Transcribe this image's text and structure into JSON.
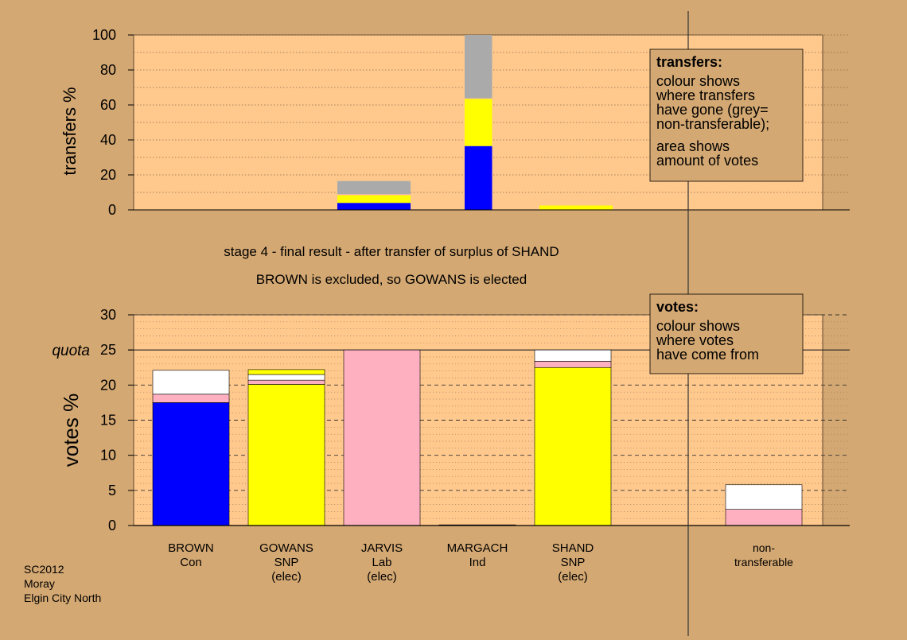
{
  "chart_data": [
    {
      "type": "bar",
      "stacked": true,
      "ylabel": "transfers %",
      "ylim": [
        0,
        100
      ],
      "yticks": [
        0,
        20,
        40,
        60,
        80,
        100
      ],
      "grid": "dotted",
      "legend": {
        "placement": "top-right",
        "title": "transfers:",
        "lines": [
          "colour shows",
          "where transfers",
          "have gone (grey=",
          "non-transferable);",
          "area shows",
          "amount of votes"
        ]
      },
      "colors": {
        "blue": "#0000ff",
        "yellow": "#ffff00",
        "pink": "#ffb0c0",
        "grey": "#aaaaaa",
        "white": "#ffffff"
      },
      "bars": [
        {
          "width": 16,
          "segments": [
            {
              "color": "blue",
              "value": 4
            },
            {
              "color": "yellow",
              "value": 4.5
            },
            {
              "color": "pink",
              "value": 0.5
            },
            {
              "color": "grey",
              "value": 7.5
            }
          ]
        },
        {
          "width": 6,
          "segments": [
            {
              "color": "blue",
              "value": 36.5
            },
            {
              "color": "yellow",
              "value": 27
            },
            {
              "color": "pink",
              "value": 0.3
            },
            {
              "color": "grey",
              "value": 36.2
            }
          ]
        },
        {
          "width": 16,
          "segments": [
            {
              "color": "yellow",
              "value": 2.5
            }
          ]
        }
      ]
    },
    {
      "type": "bar",
      "stacked": true,
      "ylabel": "votes %",
      "ylim": [
        0,
        30
      ],
      "yticks": [
        0,
        5,
        10,
        15,
        20,
        25,
        30
      ],
      "quota": {
        "label": "quota",
        "value": 25
      },
      "grid": "dashed",
      "legend": {
        "placement": "top-right",
        "title": "votes:",
        "lines": [
          "colour shows",
          "where votes",
          "have come from"
        ]
      },
      "categories": [
        {
          "lines": [
            "BROWN",
            "Con"
          ]
        },
        {
          "lines": [
            "GOWANS",
            "SNP",
            "(elec)"
          ]
        },
        {
          "lines": [
            "JARVIS",
            "Lab",
            "(elec)"
          ]
        },
        {
          "lines": [
            "MARGACH",
            "Ind"
          ]
        },
        {
          "lines": [
            "SHAND",
            "SNP",
            "(elec)"
          ]
        },
        {
          "lines": []
        },
        {
          "lines": [
            "non-",
            "transferable"
          ]
        }
      ],
      "bars": [
        {
          "segments": [
            {
              "color": "blue",
              "value": 17.5
            },
            {
              "color": "pink",
              "value": 1.2
            },
            {
              "color": "white",
              "value": 3.4
            }
          ]
        },
        {
          "segments": [
            {
              "color": "yellow",
              "value": 20.1
            },
            {
              "color": "pink",
              "value": 0.6
            },
            {
              "color": "white",
              "value": 0.8
            },
            {
              "color": "yellow",
              "value": 0.7
            }
          ]
        },
        {
          "segments": [
            {
              "color": "pink",
              "value": 25
            }
          ]
        },
        {
          "segments": [
            {
              "color": "pink",
              "value": 0.1
            }
          ]
        },
        {
          "segments": [
            {
              "color": "yellow",
              "value": 22.5
            },
            {
              "color": "pink",
              "value": 0.9
            },
            {
              "color": "white",
              "value": 1.6
            }
          ]
        },
        {
          "segments": []
        },
        {
          "segments": [
            {
              "color": "pink",
              "value": 2.3
            },
            {
              "color": "white",
              "value": 3.5
            }
          ]
        }
      ]
    }
  ],
  "captions": {
    "line1": "stage 4 - final result - after transfer of surplus of SHAND",
    "line2": "BROWN is excluded, so GOWANS is elected"
  },
  "footer": {
    "lines": [
      "SC2012",
      "Moray",
      "Elgin City North"
    ]
  }
}
